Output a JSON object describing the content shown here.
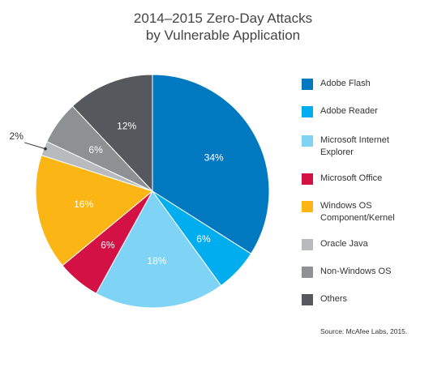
{
  "chart_data": {
    "type": "pie",
    "title": "2014–2015 Zero-Day Attacks\nby Vulnerable Application",
    "title_lines": [
      "2014–2015 Zero-Day Attacks",
      "by Vulnerable Application"
    ],
    "unit": "%",
    "start": "12 o'clock",
    "direction": "clockwise",
    "legend_placement": "right",
    "slices": [
      {
        "label": "Adobe Flash",
        "value": 34,
        "color": "#0079C1"
      },
      {
        "label": "Adobe Reader",
        "value": 6,
        "color": "#00AEEF"
      },
      {
        "label": "Microsoft Internet Explorer",
        "value": 18,
        "color": "#7FD4F5"
      },
      {
        "label": "Microsoft Office",
        "value": 6,
        "color": "#D31145"
      },
      {
        "label": "Windows OS Component/Kernel",
        "value": 16,
        "color": "#FBB514"
      },
      {
        "label": "Oracle Java",
        "value": 2,
        "color": "#B8BBBE"
      },
      {
        "label": "Non-Windows OS",
        "value": 6,
        "color": "#8E9194"
      },
      {
        "label": "Others",
        "value": 12,
        "color": "#55585C"
      }
    ],
    "legend": [
      {
        "label": "Adobe Flash",
        "color": "#0079C1"
      },
      {
        "label": "Adobe Reader",
        "color": "#00AEEF"
      },
      {
        "label": "Microsoft Internet\nExplorer",
        "color": "#7FD4F5"
      },
      {
        "label": "Microsoft Office",
        "color": "#D31145"
      },
      {
        "label": "Windows OS\nComponent/Kernel",
        "color": "#FBB514"
      },
      {
        "label": "Oracle Java",
        "color": "#B8BBBE"
      },
      {
        "label": "Non-Windows OS",
        "color": "#8E9194"
      },
      {
        "label": "Others",
        "color": "#55585C"
      }
    ],
    "source": "Source: McAfee Labs, 2015."
  }
}
